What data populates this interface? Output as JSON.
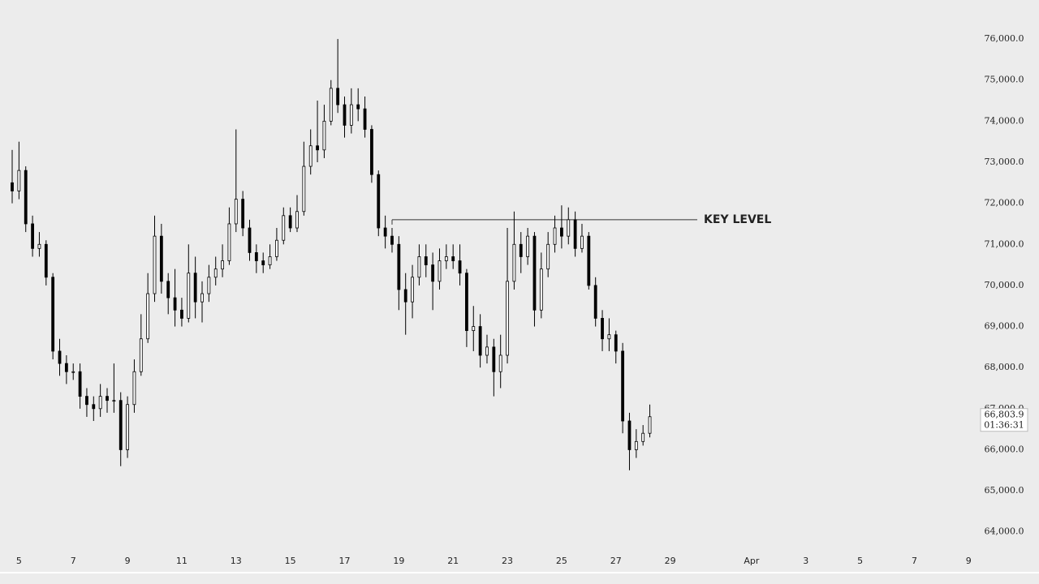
{
  "chart_data": {
    "type": "candlestick",
    "x": [
      4.75,
      5.0,
      5.25,
      5.5,
      5.75,
      6.0,
      6.25,
      6.5,
      6.75,
      7.0,
      7.25,
      7.5,
      7.75,
      8.0,
      8.25,
      8.5,
      8.75,
      9.0,
      9.25,
      9.5,
      9.75,
      10.0,
      10.25,
      10.5,
      10.75,
      11.0,
      11.25,
      11.5,
      11.75,
      12.0,
      12.25,
      12.5,
      12.75,
      13.0,
      13.25,
      13.5,
      13.75,
      14.0,
      14.25,
      14.5,
      14.75,
      15.0,
      15.25,
      15.5,
      15.75,
      16.0,
      16.25,
      16.5,
      16.75,
      17.0,
      17.25,
      17.5,
      17.75,
      18.0,
      18.25,
      18.5,
      18.75,
      19.0,
      19.25,
      19.5,
      19.75,
      20.0,
      20.25,
      20.5,
      20.75,
      21.0,
      21.25,
      21.5,
      21.75,
      22.0,
      22.25,
      22.5,
      22.75,
      23.0,
      23.25,
      23.5,
      23.75,
      24.0,
      24.25,
      24.5,
      24.75,
      25.0,
      25.25,
      25.5,
      25.75,
      26.0,
      26.25,
      26.5,
      26.75,
      27.0,
      27.25,
      27.5,
      27.75,
      28.0,
      28.25
    ],
    "open": [
      72500,
      72300,
      72800,
      71500,
      70900,
      71000,
      70200,
      68400,
      68100,
      67900,
      67900,
      67300,
      67100,
      67000,
      67300,
      67200,
      67200,
      66000,
      67100,
      67900,
      68700,
      69800,
      71200,
      70100,
      69700,
      69400,
      69200,
      70300,
      69600,
      69800,
      70200,
      70400,
      70600,
      71500,
      72100,
      71400,
      70800,
      70600,
      70500,
      70700,
      71100,
      71700,
      71400,
      71800,
      72900,
      73400,
      73300,
      74000,
      74800,
      74400,
      73900,
      74400,
      74300,
      73800,
      72700,
      71400,
      71200,
      71000,
      69900,
      69600,
      70200,
      70700,
      70500,
      70100,
      70600,
      70700,
      70600,
      70300,
      68900,
      69000,
      68300,
      68500,
      67900,
      68300,
      70100,
      71000,
      70700,
      71200,
      69400,
      70400,
      71000,
      71400,
      71200,
      71600,
      70900,
      71200,
      70000,
      69200,
      68700,
      68800,
      68400,
      66700,
      66000,
      66200,
      66400
    ],
    "high": [
      73300,
      73500,
      72900,
      71700,
      71300,
      71100,
      70300,
      68700,
      68300,
      68100,
      68100,
      67500,
      67300,
      67600,
      67500,
      68100,
      67400,
      67300,
      68200,
      69300,
      70300,
      71700,
      71500,
      70300,
      70400,
      69700,
      71000,
      70700,
      70100,
      70500,
      70700,
      71000,
      71900,
      73800,
      72300,
      71600,
      71000,
      70800,
      71000,
      71400,
      71900,
      71900,
      72200,
      73500,
      73800,
      74500,
      74400,
      75000,
      76000,
      74600,
      74800,
      74800,
      74600,
      73900,
      72800,
      71700,
      71400,
      71200,
      70300,
      70500,
      71000,
      71000,
      70800,
      70900,
      71000,
      71000,
      71000,
      70400,
      69500,
      69300,
      68800,
      68700,
      68800,
      71400,
      71800,
      71300,
      71400,
      71300,
      70800,
      71300,
      71700,
      71950,
      71900,
      71800,
      71500,
      71300,
      70200,
      69400,
      69200,
      68900,
      68600,
      66900,
      66500,
      66600,
      67100
    ],
    "low": [
      72000,
      72100,
      71300,
      70700,
      70700,
      70000,
      68200,
      67800,
      67600,
      67700,
      67000,
      66800,
      66700,
      66800,
      66900,
      66900,
      65600,
      65800,
      66900,
      67800,
      68600,
      69600,
      69800,
      69300,
      69000,
      69000,
      69100,
      69200,
      69100,
      69600,
      70000,
      70200,
      70500,
      71300,
      71200,
      70600,
      70300,
      70300,
      70400,
      70600,
      71000,
      71300,
      71300,
      71700,
      72700,
      73000,
      73100,
      73900,
      74200,
      73600,
      73700,
      74000,
      73600,
      72500,
      71200,
      70900,
      70800,
      69400,
      68800,
      69200,
      70000,
      70200,
      69400,
      69900,
      70400,
      70400,
      70000,
      68500,
      68400,
      68000,
      68100,
      67300,
      67500,
      68100,
      69900,
      70300,
      70500,
      69000,
      69200,
      70200,
      70800,
      70900,
      71000,
      70700,
      70800,
      69900,
      69000,
      68400,
      68400,
      68100,
      66400,
      65500,
      65800,
      66100,
      66300
    ],
    "close": [
      72300,
      72800,
      71500,
      70900,
      71000,
      70200,
      68400,
      68100,
      67900,
      67900,
      67300,
      67100,
      67000,
      67300,
      67200,
      67200,
      66000,
      67100,
      67900,
      68700,
      69800,
      71200,
      70100,
      69700,
      69400,
      69200,
      70300,
      69600,
      69800,
      70200,
      70400,
      70600,
      71500,
      72100,
      71400,
      70800,
      70600,
      70500,
      70700,
      71100,
      71700,
      71400,
      71800,
      72900,
      73400,
      73300,
      74000,
      74800,
      74400,
      73900,
      74400,
      74300,
      73800,
      72700,
      71400,
      71200,
      71000,
      69900,
      69600,
      70200,
      70700,
      70500,
      70100,
      70600,
      70700,
      70600,
      70300,
      68900,
      69000,
      68300,
      68500,
      67900,
      68300,
      70100,
      71000,
      70700,
      71200,
      69400,
      70400,
      71000,
      71400,
      71200,
      71600,
      70900,
      71200,
      70000,
      69200,
      68700,
      68800,
      68400,
      66700,
      66000,
      66200,
      66400,
      66803.9
    ],
    "up_color": "#ffffff",
    "down_color": "#000000",
    "wick_color": "#000000",
    "xlim": [
      4.6,
      40.35
    ],
    "xticks": [
      5,
      7,
      9,
      11,
      13,
      15,
      17,
      19,
      21,
      23,
      25,
      27,
      29,
      {
        "value": 32,
        "label": "Apr"
      },
      {
        "value": 34,
        "label": "3"
      },
      {
        "value": 36,
        "label": "5"
      },
      {
        "value": 38,
        "label": "7"
      },
      {
        "value": 40,
        "label": "9"
      }
    ],
    "ylim": [
      63560,
      76950
    ],
    "yticks": [
      {
        "value": 64000,
        "label": "64,000.0"
      },
      {
        "value": 65000,
        "label": "65,000.0"
      },
      {
        "value": 66000,
        "label": "66,000.0"
      },
      {
        "value": 67000,
        "label": "67,000.0"
      },
      {
        "value": 68000,
        "label": "68,000.0"
      },
      {
        "value": 69000,
        "label": "69,000.0"
      },
      {
        "value": 70000,
        "label": "70,000.0"
      },
      {
        "value": 71000,
        "label": "71,000.0"
      },
      {
        "value": 72000,
        "label": "72,000.0"
      },
      {
        "value": 73000,
        "label": "73,000.0"
      },
      {
        "value": 74000,
        "label": "74,000.0"
      },
      {
        "value": 75000,
        "label": "75,000.0"
      },
      {
        "value": 76000,
        "label": "76,000.0"
      }
    ],
    "grid": false,
    "price_label": {
      "value": 66803.9,
      "label": "66,803.9"
    },
    "countdown": "01:36:31",
    "annotation": {
      "text": "KEY LEVEL",
      "value": 71600,
      "x": [
        18.75,
        30.0
      ]
    }
  }
}
